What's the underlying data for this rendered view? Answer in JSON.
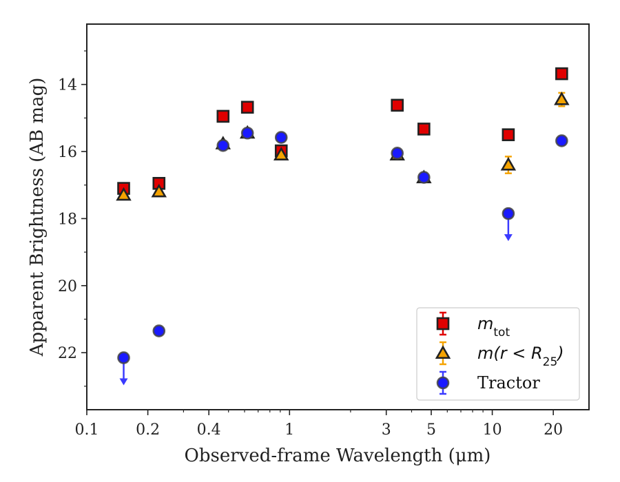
{
  "chart_data": {
    "type": "scatter",
    "xlabel": "Observed-frame Wavelength (μm)",
    "ylabel": "Apparent Brightness (AB mag)",
    "x_scale": "log",
    "xlim": [
      0.1,
      30
    ],
    "ylim": [
      23.7,
      12.2
    ],
    "y_inverted": true,
    "x_ticks": [
      {
        "value": 0.1,
        "label": "0.1"
      },
      {
        "value": 0.2,
        "label": "0.2"
      },
      {
        "value": 0.4,
        "label": "0.4"
      },
      {
        "value": 1,
        "label": "1"
      },
      {
        "value": 3,
        "label": "3"
      },
      {
        "value": 5,
        "label": "5"
      },
      {
        "value": 10,
        "label": "10"
      },
      {
        "value": 20,
        "label": "20"
      }
    ],
    "y_ticks": [
      {
        "value": 14,
        "label": "14"
      },
      {
        "value": 16,
        "label": "16"
      },
      {
        "value": 18,
        "label": "18"
      },
      {
        "value": 20,
        "label": "20"
      },
      {
        "value": 22,
        "label": "22"
      }
    ],
    "grid": false,
    "legend_position": "bottom-right",
    "series": [
      {
        "name": "m_tot",
        "marker": "square",
        "color": "#e00000",
        "edge_color": "#222222",
        "error_color": "#e00000",
        "points": [
          {
            "x": 0.152,
            "y": 17.1
          },
          {
            "x": 0.227,
            "y": 16.95
          },
          {
            "x": 0.47,
            "y": 14.95
          },
          {
            "x": 0.62,
            "y": 14.68
          },
          {
            "x": 0.91,
            "y": 15.98
          },
          {
            "x": 3.4,
            "y": 14.62
          },
          {
            "x": 4.6,
            "y": 15.33
          },
          {
            "x": 12,
            "y": 15.5
          },
          {
            "x": 22,
            "y": 13.68
          }
        ]
      },
      {
        "name": "m(r < R25)",
        "marker": "triangle",
        "color": "#f5a300",
        "edge_color": "#222222",
        "error_color": "#f5a300",
        "points": [
          {
            "x": 0.152,
            "y": 17.3
          },
          {
            "x": 0.227,
            "y": 17.2
          },
          {
            "x": 0.47,
            "y": 15.77
          },
          {
            "x": 0.62,
            "y": 15.45
          },
          {
            "x": 0.91,
            "y": 16.1
          },
          {
            "x": 3.4,
            "y": 16.1
          },
          {
            "x": 4.6,
            "y": 16.78
          },
          {
            "x": 12,
            "y": 16.4,
            "err": 0.25
          },
          {
            "x": 22,
            "y": 14.45,
            "err": 0.2
          }
        ]
      },
      {
        "name": "Tractor",
        "marker": "circle",
        "color": "#1a1aff",
        "edge_color": "#444444",
        "error_color": "#3a3aff",
        "points": [
          {
            "x": 0.152,
            "y": 22.15,
            "upper_limit": true
          },
          {
            "x": 0.227,
            "y": 21.35
          },
          {
            "x": 0.47,
            "y": 15.82
          },
          {
            "x": 0.62,
            "y": 15.45
          },
          {
            "x": 0.91,
            "y": 15.58
          },
          {
            "x": 3.4,
            "y": 16.05
          },
          {
            "x": 4.6,
            "y": 16.77
          },
          {
            "x": 12,
            "y": 17.85,
            "upper_limit": true
          },
          {
            "x": 22,
            "y": 15.68
          }
        ]
      }
    ],
    "legend": {
      "entries": [
        {
          "series": "m_tot",
          "main": "m",
          "sub": "tot",
          "rest": ""
        },
        {
          "series": "m(r < R25)",
          "main": "m(r < R",
          "sub": "25",
          "rest": ")"
        },
        {
          "series": "Tractor",
          "main": "Tractor",
          "sub": "",
          "rest": ""
        }
      ]
    }
  }
}
